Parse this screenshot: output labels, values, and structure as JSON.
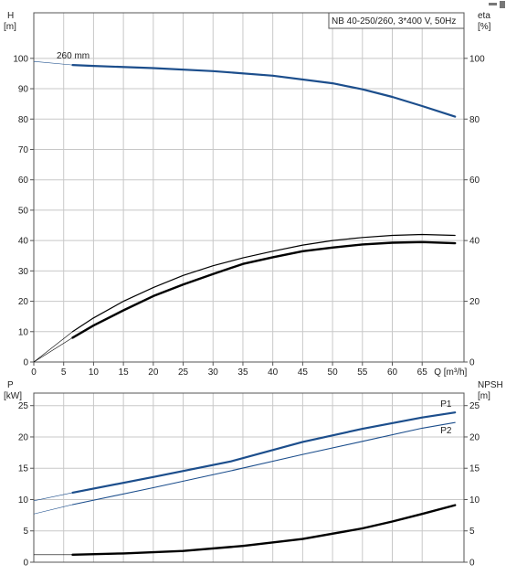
{
  "chart_data": [
    {
      "type": "line",
      "title": "NB 40-250/260, 3*400 V, 50Hz",
      "annotation": "260 mm",
      "xlabel": "Q [m³/h]",
      "ylabel_left": [
        "H",
        "[m]"
      ],
      "ylabel_right": [
        "eta",
        "[%]"
      ],
      "x_ticks": [
        0,
        5,
        10,
        15,
        20,
        25,
        30,
        35,
        40,
        45,
        50,
        55,
        60,
        65
      ],
      "xlim": [
        0,
        72
      ],
      "y_left_ticks": [
        0,
        10,
        20,
        30,
        40,
        50,
        60,
        70,
        80,
        90,
        100
      ],
      "y_left_lim": [
        0,
        115
      ],
      "y_right_ticks": [
        0,
        20,
        40,
        60,
        80,
        100
      ],
      "y_right_lim": [
        0,
        115
      ],
      "grid": true,
      "series": [
        {
          "name": "H",
          "axis": "left",
          "color": "#1c4e8c",
          "width": 2.2,
          "x": [
            0,
            6.5,
            10,
            20,
            30,
            40,
            50,
            55,
            60,
            65,
            70.5
          ],
          "y": [
            99,
            97.8,
            97.5,
            96.8,
            95.8,
            94.3,
            91.8,
            89.8,
            87.3,
            84.3,
            80.8
          ]
        },
        {
          "name": "eta",
          "axis": "right",
          "color": "#000000",
          "width": 1.2,
          "x": [
            0,
            6.5,
            10,
            15,
            20,
            25,
            30,
            35,
            40,
            45,
            50,
            55,
            60,
            65,
            70.5
          ],
          "y": [
            0,
            10,
            14.5,
            20,
            24.5,
            28.5,
            31.7,
            34.3,
            36.5,
            38.5,
            40,
            41,
            41.7,
            42,
            41.7
          ]
        },
        {
          "name": "eta",
          "axis": "right",
          "color": "#000000",
          "width": 2.4,
          "x": [
            0,
            6.5,
            10,
            15,
            20,
            25,
            30,
            35,
            40,
            45,
            50,
            55,
            60,
            65,
            70.5
          ],
          "y": [
            0,
            8,
            12,
            17,
            21.7,
            25.5,
            29,
            32.3,
            34.5,
            36.5,
            37.7,
            38.7,
            39.3,
            39.5,
            39.1
          ]
        }
      ]
    },
    {
      "type": "line",
      "xlabel": "",
      "ylabel_left": [
        "P",
        "[kW]"
      ],
      "ylabel_right": [
        "NPSH",
        "[m]"
      ],
      "xlim": [
        0,
        72
      ],
      "y_left_ticks": [
        0,
        5,
        10,
        15,
        20,
        25
      ],
      "y_left_lim": [
        0,
        27
      ],
      "y_right_ticks": [
        0,
        5,
        10,
        15,
        20,
        25
      ],
      "y_right_lim": [
        0,
        27
      ],
      "grid": true,
      "series": [
        {
          "name": "P1",
          "axis": "left",
          "color": "#1c4e8c",
          "width": 2.2,
          "x": [
            0,
            6.5,
            20,
            33,
            45,
            55,
            65,
            70.5
          ],
          "y": [
            9.8,
            11.1,
            13.6,
            16.1,
            19.2,
            21.3,
            23.1,
            23.9
          ]
        },
        {
          "name": "P2",
          "axis": "left",
          "color": "#1c4e8c",
          "width": 1.1,
          "x": [
            0,
            6.5,
            20,
            33,
            45,
            55,
            65,
            70.5
          ],
          "y": [
            7.7,
            9.2,
            11.9,
            14.6,
            17.2,
            19.3,
            21.4,
            22.3
          ]
        },
        {
          "name": "NPSH",
          "axis": "right",
          "color": "#000000",
          "width": 2.4,
          "x": [
            0,
            6.5,
            15,
            25,
            35,
            45,
            55,
            60,
            65,
            70.5
          ],
          "y": [
            1.2,
            1.2,
            1.4,
            1.8,
            2.6,
            3.7,
            5.4,
            6.5,
            7.7,
            9.1
          ]
        }
      ],
      "series_labels": [
        {
          "text": "P1",
          "color": "#1c4e8c"
        },
        {
          "text": "P2",
          "color": "#1c4e8c"
        }
      ]
    }
  ]
}
